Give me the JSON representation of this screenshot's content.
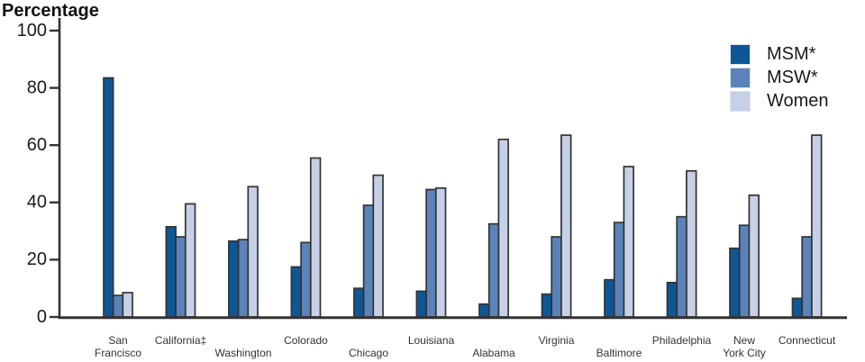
{
  "chart_data": {
    "type": "bar",
    "title": "",
    "ylabel": "Percentage",
    "xlabel": "",
    "ylim": [
      0,
      100
    ],
    "yticks": [
      0,
      20,
      40,
      60,
      80,
      100
    ],
    "grid": false,
    "legend_position": "top-right",
    "background_color": "#ffffff",
    "axis_color": "#333333",
    "bar_outline_color": "#333333",
    "categories": [
      {
        "label": "San Francisco",
        "lines": [
          "San",
          "Francisco"
        ],
        "row": "two"
      },
      {
        "label": "California‡",
        "lines": [
          "California‡"
        ],
        "row": "upper"
      },
      {
        "label": "Washington",
        "lines": [
          "Washington"
        ],
        "row": "lower"
      },
      {
        "label": "Colorado",
        "lines": [
          "Colorado"
        ],
        "row": "upper"
      },
      {
        "label": "Chicago",
        "lines": [
          "Chicago"
        ],
        "row": "lower"
      },
      {
        "label": "Louisiana",
        "lines": [
          "Louisiana"
        ],
        "row": "upper"
      },
      {
        "label": "Alabama",
        "lines": [
          "Alabama"
        ],
        "row": "lower"
      },
      {
        "label": "Virginia",
        "lines": [
          "Virginia"
        ],
        "row": "upper"
      },
      {
        "label": "Baltimore",
        "lines": [
          "Baltimore"
        ],
        "row": "lower"
      },
      {
        "label": "Philadelphia",
        "lines": [
          "Philadelphia"
        ],
        "row": "upper"
      },
      {
        "label": "New York City",
        "lines": [
          "New",
          "York City"
        ],
        "row": "two"
      },
      {
        "label": "Connecticut",
        "lines": [
          "Connecticut"
        ],
        "row": "upper"
      }
    ],
    "series": [
      {
        "name": "MSM*",
        "color": "#0E5796",
        "values": [
          83.5,
          31.5,
          26.5,
          17.5,
          10,
          9,
          4.5,
          8,
          13,
          12,
          24,
          6.5
        ]
      },
      {
        "name": "MSW*",
        "color": "#5B83B9",
        "values": [
          7.5,
          28,
          27,
          26,
          39,
          44.5,
          32.5,
          28,
          33,
          35,
          32,
          28
        ]
      },
      {
        "name": "Women",
        "color": "#C6D0E6",
        "values": [
          8.5,
          39.5,
          45.5,
          55.5,
          49.5,
          45,
          62,
          63.5,
          52.5,
          51,
          42.5,
          63.5
        ]
      }
    ]
  }
}
